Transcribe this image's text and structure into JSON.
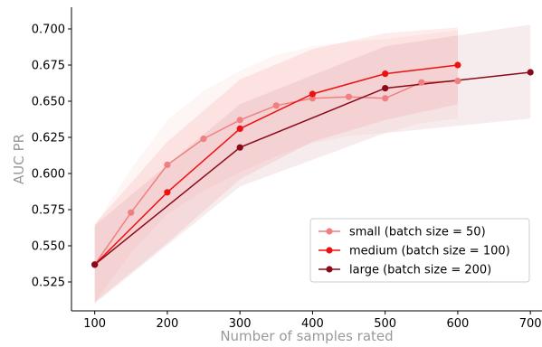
{
  "chart_data": {
    "type": "line",
    "title": "",
    "xlabel": "Number of samples rated",
    "ylabel": "AUC PR",
    "xlim": [
      68,
      716
    ],
    "ylim": [
      0.505,
      0.715
    ],
    "x_ticks": [
      100,
      200,
      300,
      400,
      500,
      600,
      700
    ],
    "y_ticks": [
      0.525,
      0.55,
      0.575,
      0.6,
      0.625,
      0.65,
      0.675,
      0.7
    ],
    "y_tick_labels": [
      "0.525",
      "0.550",
      "0.575",
      "0.600",
      "0.625",
      "0.650",
      "0.675",
      "0.700"
    ],
    "grid": false,
    "legend_position": "lower-right",
    "series": [
      {
        "name": "small (batch size = 50)",
        "color": "#f08080",
        "x": [
          100,
          150,
          200,
          250,
          300,
          350,
          400,
          450,
          500,
          550,
          600
        ],
        "y": [
          0.537,
          0.573,
          0.606,
          0.624,
          0.637,
          0.647,
          0.652,
          0.653,
          0.652,
          0.663,
          0.664
        ],
        "lower": [
          0.511,
          0.545,
          0.572,
          0.588,
          0.601,
          0.612,
          0.621,
          0.626,
          0.628,
          0.635,
          0.638
        ],
        "upper": [
          0.564,
          0.603,
          0.637,
          0.657,
          0.671,
          0.682,
          0.688,
          0.691,
          0.693,
          0.696,
          0.699
        ]
      },
      {
        "name": "medium (batch size = 100)",
        "color": "#ee1111",
        "x": [
          100,
          200,
          300,
          400,
          500,
          600
        ],
        "y": [
          0.537,
          0.587,
          0.631,
          0.655,
          0.669,
          0.675
        ],
        "lower": [
          0.511,
          0.552,
          0.596,
          0.622,
          0.637,
          0.648
        ],
        "upper": [
          0.565,
          0.622,
          0.665,
          0.686,
          0.697,
          0.701
        ]
      },
      {
        "name": "large (batch size = 200)",
        "color": "#8b0a1a",
        "x": [
          100,
          300,
          500,
          700
        ],
        "y": [
          0.537,
          0.618,
          0.659,
          0.67
        ],
        "lower": [
          0.51,
          0.591,
          0.628,
          0.638
        ],
        "upper": [
          0.564,
          0.648,
          0.688,
          0.703
        ]
      }
    ]
  }
}
